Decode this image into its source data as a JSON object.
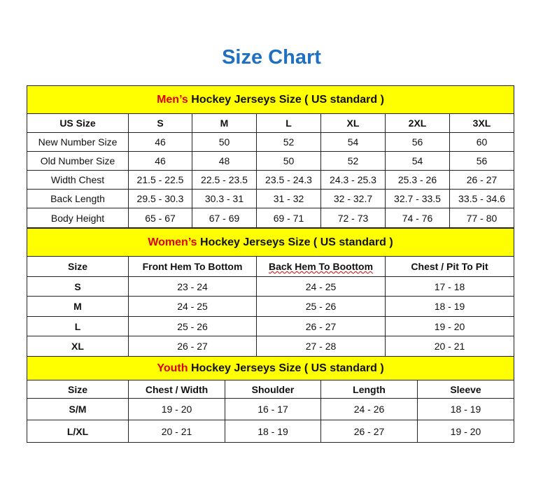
{
  "title": "Size Chart",
  "colors": {
    "title": "#1f70c1",
    "header_bg": "#ffff00",
    "highlight": "#e00000"
  },
  "mens": {
    "highlight": "Men’s",
    "heading": " Hockey Jerseys Size ( US standard )",
    "columns": [
      "US Size",
      "S",
      "M",
      "L",
      "XL",
      "2XL",
      "3XL"
    ],
    "rows": [
      [
        "New Number Size",
        "46",
        "50",
        "52",
        "54",
        "56",
        "60"
      ],
      [
        "Old Number Size",
        "46",
        "48",
        "50",
        "52",
        "54",
        "56"
      ],
      [
        "Width Chest",
        "21.5 - 22.5",
        "22.5 - 23.5",
        "23.5 - 24.3",
        "24.3 - 25.3",
        "25.3 - 26",
        "26 - 27"
      ],
      [
        "Back Length",
        "29.5 - 30.3",
        "30.3 - 31",
        "31 - 32",
        "32 - 32.7",
        "32.7 - 33.5",
        "33.5 - 34.6"
      ],
      [
        "Body Height",
        "65 - 67",
        "67 - 69",
        "69 - 71",
        "72 - 73",
        "74 - 76",
        "77 - 80"
      ]
    ]
  },
  "womens": {
    "highlight": "Women’s",
    "heading": " Hockey Jerseys Size ( US standard )",
    "columns": [
      "Size",
      "Front Hem To Bottom",
      "Back Hem To Boottom",
      "Chest / Pit To Pit"
    ],
    "rows": [
      [
        "S",
        "23 - 24",
        "24 - 25",
        "17 - 18"
      ],
      [
        "M",
        "24 - 25",
        "25 - 26",
        "18 - 19"
      ],
      [
        "L",
        "25 - 26",
        "26 - 27",
        "19 - 20"
      ],
      [
        "XL",
        "26 - 27",
        "27 - 28",
        "20 - 21"
      ]
    ]
  },
  "youth": {
    "highlight": "Youth",
    "heading": " Hockey Jerseys Size ( US standard )",
    "columns": [
      "Size",
      "Chest / Width",
      "Shoulder",
      "Length",
      "Sleeve"
    ],
    "rows": [
      [
        "S/M",
        "19 - 20",
        "16 - 17",
        "24 - 26",
        "18 - 19"
      ],
      [
        "L/XL",
        "20 - 21",
        "18 - 19",
        "26 - 27",
        "19 - 20"
      ]
    ]
  }
}
